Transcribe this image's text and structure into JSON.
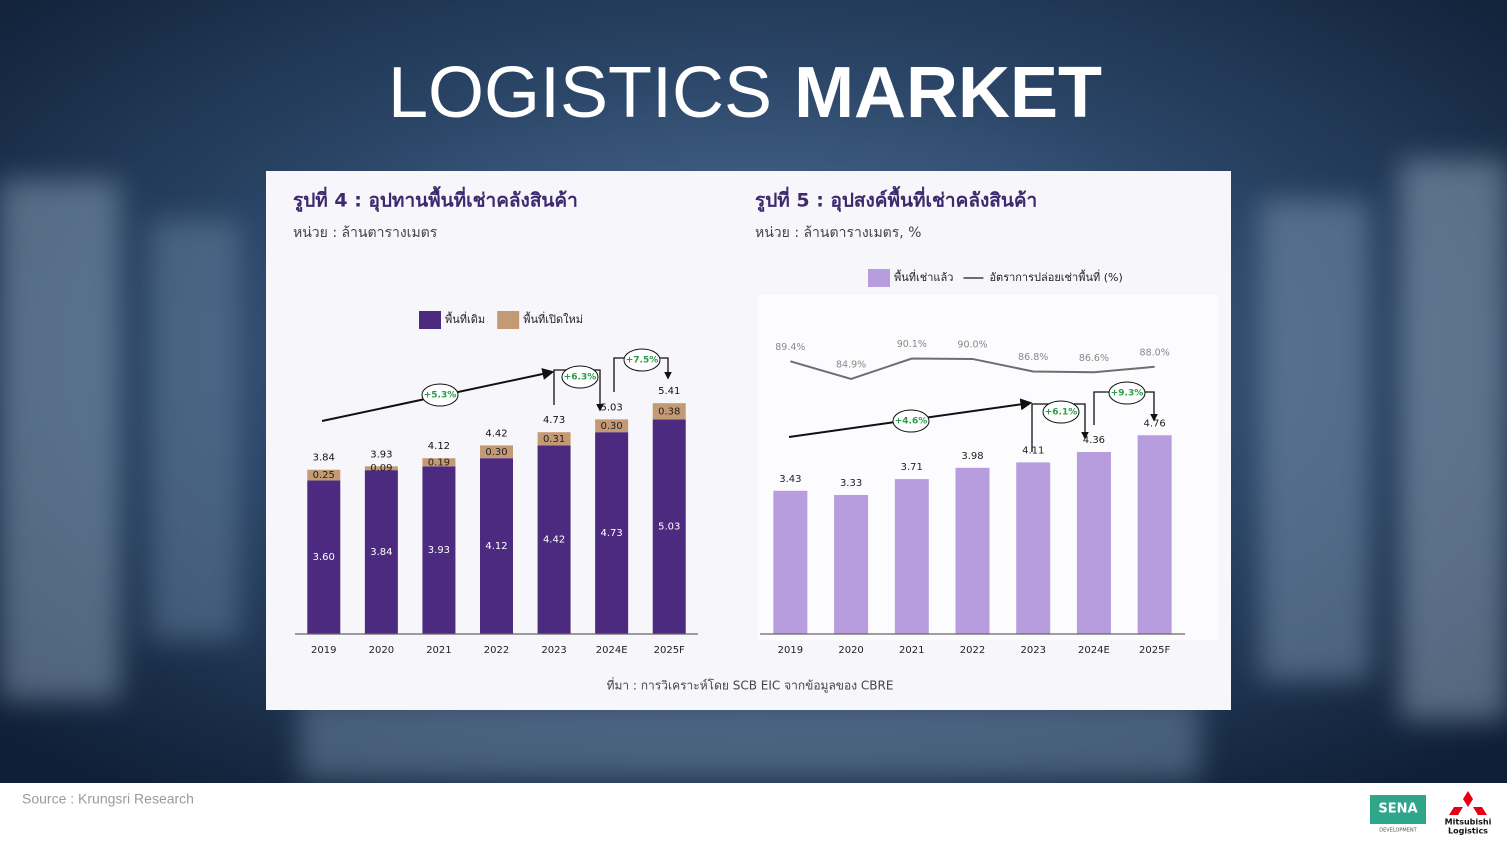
{
  "slide": {
    "title_light": "LOGISTICS",
    "title_bold": "MARKET",
    "source": "Source : Krungsri Research",
    "chart_source": "ที่มา : การวิเคราะห์โดย SCB EIC จากข้อมูลของ CBRE",
    "logo_sena": "SENA",
    "logo_sena_sub": "DEVELOPMENT",
    "logo_mitsubishi": [
      "Mitsubishi",
      "Logistics"
    ]
  },
  "chart_data": [
    {
      "type": "stacked_bar",
      "title": "รูปที่ 4 : อุปทานพื้นที่เช่าคลังสินค้า",
      "subtitle": "หน่วย : ล้านตารางเมตร",
      "categories": [
        "2019",
        "2020",
        "2021",
        "2022",
        "2023",
        "2024E",
        "2025F"
      ],
      "series": [
        {
          "name": "พื้นที่เดิม",
          "color": "#4b2a7f",
          "values": [
            3.6,
            3.84,
            3.93,
            4.12,
            4.42,
            4.73,
            5.03
          ],
          "value_labels": [
            "3.60",
            "3.84",
            "3.93",
            "4.12",
            "4.42",
            "4.73",
            "5.03"
          ]
        },
        {
          "name": "พื้นที่เปิดใหม่",
          "color": "#c49a74",
          "values": [
            0.25,
            0.09,
            0.19,
            0.3,
            0.31,
            0.3,
            0.38
          ],
          "value_labels": [
            "0.25",
            "0.09",
            "0.19",
            "0.30",
            "0.31",
            "0.30",
            "0.38"
          ]
        }
      ],
      "totals": [
        3.84,
        3.93,
        4.12,
        4.42,
        4.73,
        5.03,
        5.41
      ],
      "annotations": [
        "+5.3%",
        "+6.3%",
        "+7.5%"
      ],
      "ylim": [
        0,
        6
      ]
    },
    {
      "type": "bar_line",
      "title": "รูปที่ 5 : อุปสงค์พื้นที่เช่าคลังสินค้า",
      "subtitle": "หน่วย : ล้านตารางเมตร, %",
      "categories": [
        "2019",
        "2020",
        "2021",
        "2022",
        "2023",
        "2024E",
        "2025F"
      ],
      "series": [
        {
          "name": "พื้นที่เช่าแล้ว",
          "color": "#b79ddd",
          "values": [
            3.43,
            3.33,
            3.71,
            3.98,
            4.11,
            4.36,
            4.76
          ]
        },
        {
          "name": "อัตราการปล่อยเช่าพื้นที่ (%)",
          "color": "#6e6e6e",
          "axis": "y2",
          "values": [
            89.4,
            84.9,
            90.1,
            90.0,
            86.8,
            86.6,
            88.0
          ],
          "value_labels": [
            "89.4%",
            "84.9%",
            "90.1%",
            "90.0%",
            "86.8%",
            "86.6%",
            "88.0%"
          ]
        }
      ],
      "annotations": [
        "+4.6%",
        "+6.1%",
        "+9.3%"
      ],
      "ylim": [
        0,
        8
      ],
      "y2lim": [
        20,
        105
      ]
    }
  ]
}
